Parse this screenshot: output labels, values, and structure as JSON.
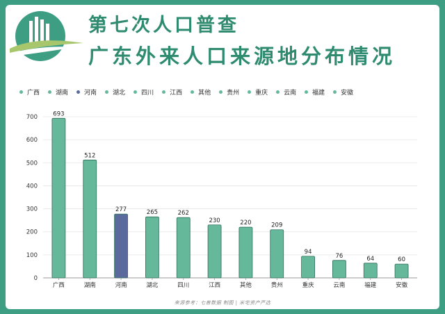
{
  "header": {
    "title_line1": "第七次人口普查",
    "title_line2": "广东外来人口来源地分布情况"
  },
  "colors": {
    "background": "#3d9e84",
    "title": "#2f8b6f",
    "bar": "#66b89a",
    "bar_highlight": "#5a6a9c"
  },
  "chart_data": {
    "type": "bar",
    "categories": [
      "广西",
      "湖南",
      "河南",
      "湖北",
      "四川",
      "江西",
      "其他",
      "贵州",
      "重庆",
      "云南",
      "福建",
      "安徽"
    ],
    "values": [
      693,
      512,
      277,
      265,
      262,
      230,
      220,
      209,
      94,
      76,
      64,
      60
    ],
    "highlight_category": "河南",
    "ylim": [
      0,
      700
    ],
    "yticks": [
      0,
      100,
      200,
      300,
      400,
      500,
      600,
      700
    ],
    "grid": true,
    "legend_position": "top",
    "legend": [
      "广西",
      "湖南",
      "河南",
      "湖北",
      "四川",
      "江西",
      "其他",
      "贵州",
      "重庆",
      "云南",
      "福建",
      "安徽"
    ],
    "xlabel": "",
    "ylabel": ""
  },
  "footer": {
    "source": "来源参考：七普数据 制图 | 米宅资产严选"
  }
}
